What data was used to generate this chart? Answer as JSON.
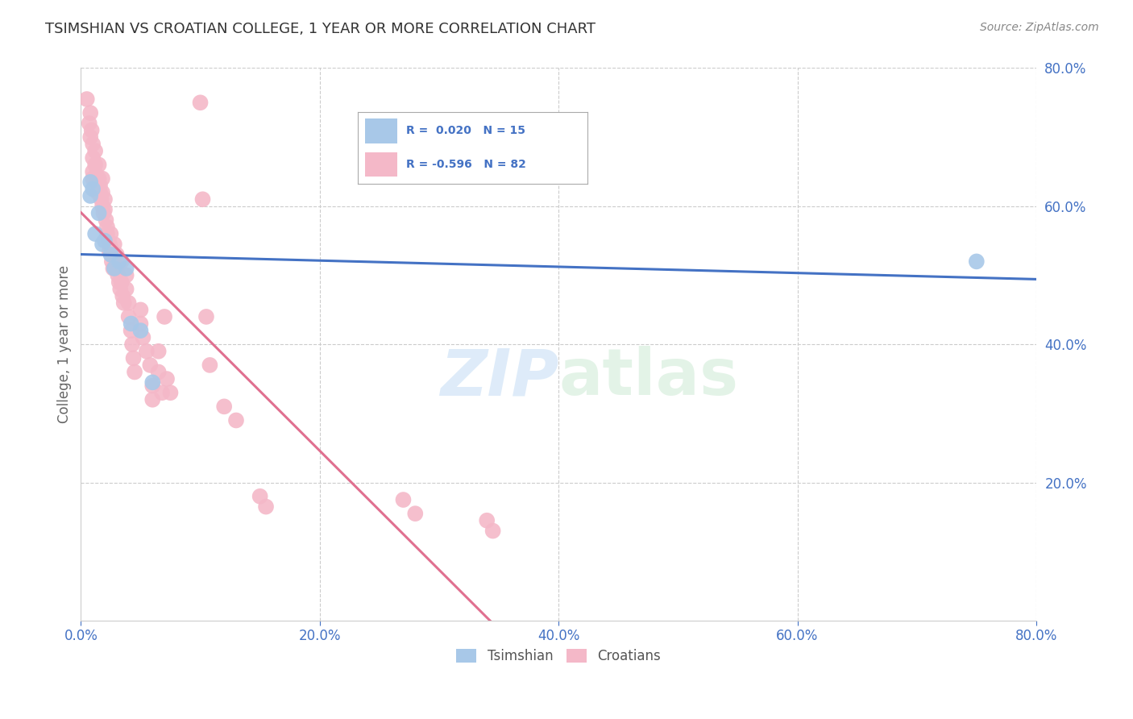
{
  "title": "TSIMSHIAN VS CROATIAN COLLEGE, 1 YEAR OR MORE CORRELATION CHART",
  "source": "Source: ZipAtlas.com",
  "ylabel": "College, 1 year or more",
  "xlim": [
    0.0,
    0.8
  ],
  "ylim": [
    0.0,
    0.8
  ],
  "xtick_values": [
    0.0,
    0.2,
    0.4,
    0.6,
    0.8
  ],
  "ytick_values": [
    0.2,
    0.4,
    0.6,
    0.8
  ],
  "tsimshian_color": "#a8c8e8",
  "croatian_color": "#f4b8c8",
  "trendline_tsimshian_color": "#4472c4",
  "trendline_croatian_color": "#e07090",
  "background_color": "#ffffff",
  "grid_color": "#cccccc",
  "watermark_color": "#ddeeff",
  "legend_r_color": "#4472c4",
  "axis_label_color": "#4472c4",
  "tsimshian_points": [
    [
      0.008,
      0.635
    ],
    [
      0.008,
      0.615
    ],
    [
      0.01,
      0.625
    ],
    [
      0.012,
      0.56
    ],
    [
      0.015,
      0.59
    ],
    [
      0.018,
      0.545
    ],
    [
      0.02,
      0.55
    ],
    [
      0.025,
      0.53
    ],
    [
      0.028,
      0.51
    ],
    [
      0.032,
      0.52
    ],
    [
      0.038,
      0.51
    ],
    [
      0.042,
      0.43
    ],
    [
      0.05,
      0.42
    ],
    [
      0.06,
      0.345
    ],
    [
      0.75,
      0.52
    ]
  ],
  "croatian_points": [
    [
      0.005,
      0.755
    ],
    [
      0.007,
      0.72
    ],
    [
      0.008,
      0.735
    ],
    [
      0.008,
      0.7
    ],
    [
      0.009,
      0.71
    ],
    [
      0.01,
      0.69
    ],
    [
      0.01,
      0.67
    ],
    [
      0.01,
      0.65
    ],
    [
      0.01,
      0.64
    ],
    [
      0.012,
      0.68
    ],
    [
      0.012,
      0.66
    ],
    [
      0.013,
      0.645
    ],
    [
      0.013,
      0.635
    ],
    [
      0.014,
      0.62
    ],
    [
      0.015,
      0.66
    ],
    [
      0.015,
      0.64
    ],
    [
      0.016,
      0.63
    ],
    [
      0.016,
      0.62
    ],
    [
      0.017,
      0.61
    ],
    [
      0.018,
      0.64
    ],
    [
      0.018,
      0.62
    ],
    [
      0.018,
      0.6
    ],
    [
      0.019,
      0.59
    ],
    [
      0.02,
      0.61
    ],
    [
      0.02,
      0.595
    ],
    [
      0.021,
      0.58
    ],
    [
      0.022,
      0.57
    ],
    [
      0.022,
      0.56
    ],
    [
      0.023,
      0.55
    ],
    [
      0.024,
      0.545
    ],
    [
      0.024,
      0.535
    ],
    [
      0.025,
      0.56
    ],
    [
      0.025,
      0.54
    ],
    [
      0.026,
      0.53
    ],
    [
      0.026,
      0.52
    ],
    [
      0.027,
      0.51
    ],
    [
      0.028,
      0.545
    ],
    [
      0.028,
      0.525
    ],
    [
      0.029,
      0.515
    ],
    [
      0.03,
      0.53
    ],
    [
      0.03,
      0.51
    ],
    [
      0.031,
      0.5
    ],
    [
      0.032,
      0.49
    ],
    [
      0.033,
      0.48
    ],
    [
      0.034,
      0.52
    ],
    [
      0.034,
      0.49
    ],
    [
      0.035,
      0.47
    ],
    [
      0.036,
      0.46
    ],
    [
      0.038,
      0.5
    ],
    [
      0.038,
      0.48
    ],
    [
      0.04,
      0.46
    ],
    [
      0.04,
      0.44
    ],
    [
      0.042,
      0.42
    ],
    [
      0.043,
      0.4
    ],
    [
      0.044,
      0.38
    ],
    [
      0.045,
      0.36
    ],
    [
      0.05,
      0.45
    ],
    [
      0.05,
      0.43
    ],
    [
      0.052,
      0.41
    ],
    [
      0.055,
      0.39
    ],
    [
      0.058,
      0.37
    ],
    [
      0.06,
      0.34
    ],
    [
      0.06,
      0.32
    ],
    [
      0.065,
      0.39
    ],
    [
      0.065,
      0.36
    ],
    [
      0.068,
      0.33
    ],
    [
      0.07,
      0.44
    ],
    [
      0.072,
      0.35
    ],
    [
      0.075,
      0.33
    ],
    [
      0.1,
      0.75
    ],
    [
      0.102,
      0.61
    ],
    [
      0.105,
      0.44
    ],
    [
      0.108,
      0.37
    ],
    [
      0.12,
      0.31
    ],
    [
      0.13,
      0.29
    ],
    [
      0.15,
      0.18
    ],
    [
      0.155,
      0.165
    ],
    [
      0.27,
      0.175
    ],
    [
      0.28,
      0.155
    ],
    [
      0.34,
      0.145
    ],
    [
      0.345,
      0.13
    ]
  ]
}
